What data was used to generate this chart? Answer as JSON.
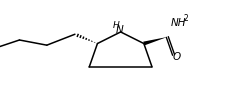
{
  "background": "#ffffff",
  "line_color": "#000000",
  "line_width": 1.1,
  "figsize": [
    2.32,
    1.01
  ],
  "dpi": 100,
  "xlim": [
    0,
    10
  ],
  "ylim": [
    0,
    4.3
  ]
}
